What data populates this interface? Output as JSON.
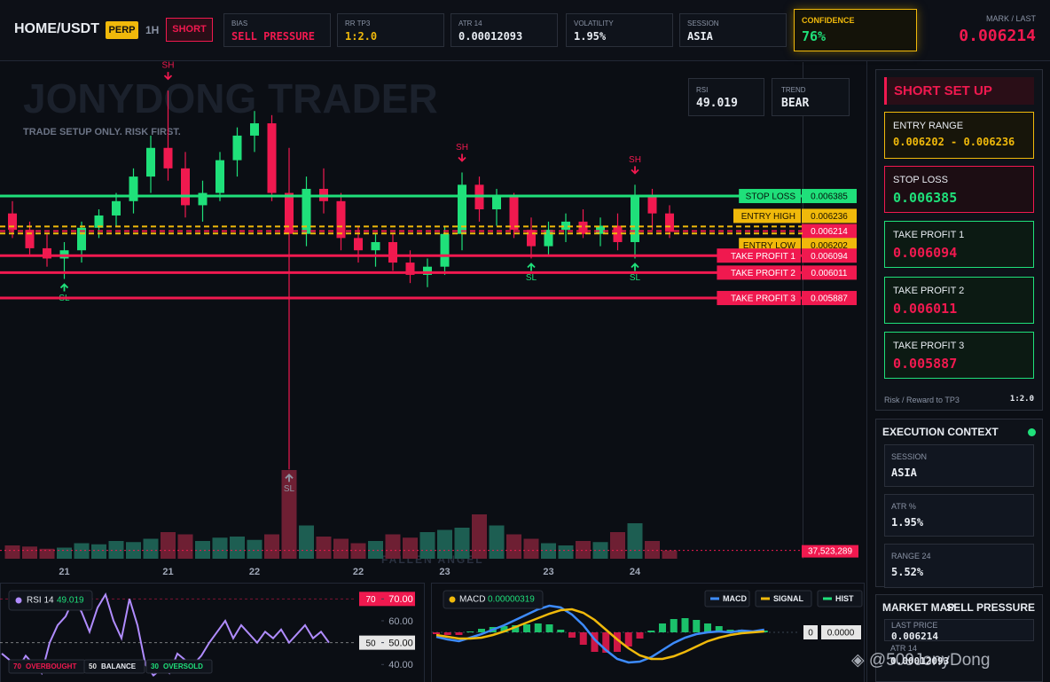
{
  "header": {
    "symbol": "HOME/USDT",
    "badge": "PERP",
    "timeframe": "1H",
    "side": "SHORT",
    "stats": [
      {
        "label": "BIAS",
        "value": "SELL PRESSURE"
      },
      {
        "label": "RR TP3",
        "value": "1:2.0"
      },
      {
        "label": "ATR 14",
        "value": "0.00012093"
      },
      {
        "label": "VOLATILITY",
        "value": "1.95%"
      },
      {
        "label": "SESSION",
        "value": "ASIA"
      }
    ],
    "confidence": {
      "label": "CONFIDENCE",
      "value": "76%"
    },
    "mark": {
      "label": "MARK / LAST",
      "value": "0.006214"
    }
  },
  "overlay": {
    "watermark": "JONYDONG TRADER",
    "tagline": "TRADE SETUP ONLY. RISK FIRST.",
    "rsi_label": "RSI",
    "rsi": "49.019",
    "trend_label": "TREND",
    "trend": "BEAR",
    "footer": "FALLEN ANGEL"
  },
  "setup_panel": {
    "title": "SHORT SET UP",
    "cards": [
      {
        "label": "ENTRY RANGE",
        "value": "0.006202 - 0.006236"
      },
      {
        "label": "STOP LOSS",
        "value": "0.006385"
      },
      {
        "label": "TAKE PROFIT 1",
        "value": "0.006094"
      },
      {
        "label": "TAKE PROFIT 2",
        "value": "0.006011"
      },
      {
        "label": "TAKE PROFIT 3",
        "value": "0.005887"
      }
    ],
    "rr_label": "Risk / Reward to TP3",
    "rr": "1:2.0"
  },
  "execution_context": {
    "title": "EXECUTION CONTEXT",
    "cards": [
      {
        "label": "SESSION",
        "value": "ASIA"
      },
      {
        "label": "ATR %",
        "value": "1.95%"
      },
      {
        "label": "RANGE 24",
        "value": "5.52%"
      }
    ]
  },
  "market_map": {
    "title": "MARKET MAP",
    "bias": "SELL PRESSURE",
    "last_label": "LAST PRICE",
    "last": "0.006214",
    "atr_label": "ATR 14",
    "atr": "0.00012093"
  },
  "credit": "@509JonyDong",
  "chart_data": [
    {
      "type": "candlestick",
      "up_color": "#1fe07a",
      "down_color": "#f0194f",
      "volume_up_color": "#1d5e52",
      "volume_down_color": "#6e1f33",
      "ylim": [
        0.004614,
        0.007039
      ],
      "categories": [
        null,
        null,
        null,
        "21",
        null,
        null,
        null,
        null,
        null,
        "21",
        null,
        null,
        null,
        null,
        "22",
        null,
        null,
        null,
        null,
        null,
        "22",
        null,
        null,
        null,
        null,
        "23",
        null,
        null,
        null,
        null,
        null,
        "23",
        null,
        null,
        null,
        null,
        "24",
        null,
        null
      ],
      "open": [
        0.0063,
        0.00622,
        0.00613,
        0.00608,
        0.00612,
        0.00623,
        0.00629,
        0.00636,
        0.00648,
        0.00662,
        0.00652,
        0.00634,
        0.0064,
        0.00656,
        0.00668,
        0.00674,
        0.0064,
        0.0062,
        0.00642,
        0.00636,
        0.00618,
        0.00612,
        0.00616,
        0.00606,
        0.006,
        0.00604,
        0.0062,
        0.00644,
        0.00632,
        0.00638,
        0.00622,
        0.00614,
        0.00622,
        0.00626,
        0.0062,
        0.00624,
        0.00616,
        0.00638,
        0.0063
      ],
      "high": [
        0.00636,
        0.00626,
        0.0062,
        0.00616,
        0.00626,
        0.00632,
        0.0064,
        0.00652,
        0.00668,
        0.0069,
        0.0066,
        0.00646,
        0.0066,
        0.00672,
        0.0068,
        0.00678,
        0.00662,
        0.00648,
        0.00652,
        0.0064,
        0.00624,
        0.0062,
        0.0062,
        0.00612,
        0.00608,
        0.00624,
        0.0065,
        0.00648,
        0.00642,
        0.0064,
        0.00628,
        0.00626,
        0.0063,
        0.00632,
        0.00628,
        0.0063,
        0.00644,
        0.00642,
        0.00634
      ],
      "low": [
        0.00618,
        0.0061,
        0.00604,
        0.00598,
        0.00606,
        0.00618,
        0.00624,
        0.0063,
        0.0064,
        0.00646,
        0.00628,
        0.00626,
        0.00636,
        0.00648,
        0.0066,
        0.00636,
        0.00505,
        0.00614,
        0.0063,
        0.00612,
        0.00606,
        0.00604,
        0.00602,
        0.00596,
        0.00594,
        0.006,
        0.00612,
        0.00626,
        0.00624,
        0.00618,
        0.00608,
        0.0061,
        0.00616,
        0.00618,
        0.00614,
        0.00612,
        0.00608,
        0.00622,
        0.00618
      ],
      "close": [
        0.00622,
        0.00613,
        0.00608,
        0.00612,
        0.00623,
        0.00629,
        0.00636,
        0.00648,
        0.00662,
        0.00652,
        0.00634,
        0.0064,
        0.00656,
        0.00668,
        0.00674,
        0.0064,
        0.0062,
        0.00642,
        0.00636,
        0.00618,
        0.00612,
        0.00616,
        0.00606,
        0.006,
        0.00604,
        0.0062,
        0.00644,
        0.00632,
        0.00638,
        0.00622,
        0.00614,
        0.00622,
        0.00626,
        0.0062,
        0.00624,
        0.00616,
        0.00638,
        0.0063,
        0.00621
      ],
      "volume": [
        60000000,
        55000000,
        45000000,
        50000000,
        70000000,
        65000000,
        80000000,
        75000000,
        90000000,
        120000000,
        110000000,
        80000000,
        95000000,
        100000000,
        85000000,
        110000000,
        400000000,
        150000000,
        100000000,
        90000000,
        70000000,
        80000000,
        110000000,
        95000000,
        120000000,
        130000000,
        140000000,
        200000000,
        150000000,
        110000000,
        90000000,
        70000000,
        60000000,
        80000000,
        75000000,
        120000000,
        160000000,
        80000000,
        37523289
      ],
      "volume_ylim": [
        0,
        400000000
      ],
      "volume_marker": {
        "value": 37523289,
        "label": "37,523,289"
      },
      "swing_high": [
        null,
        null,
        null,
        null,
        null,
        null,
        null,
        null,
        null,
        "SH",
        null,
        null,
        null,
        null,
        null,
        null,
        null,
        null,
        null,
        null,
        null,
        null,
        null,
        null,
        null,
        null,
        "SH",
        null,
        null,
        null,
        null,
        null,
        null,
        null,
        null,
        null,
        "SH",
        null,
        null
      ],
      "swing_low": [
        null,
        null,
        null,
        "SL",
        null,
        null,
        null,
        null,
        null,
        null,
        null,
        null,
        null,
        null,
        null,
        null,
        "SL",
        null,
        null,
        null,
        null,
        null,
        null,
        null,
        null,
        null,
        null,
        null,
        null,
        null,
        "SL",
        null,
        null,
        null,
        null,
        null,
        "SL",
        null,
        null
      ],
      "levels": [
        {
          "label": "STOP LOSS",
          "value": 0.006385,
          "color": "#1fe07a",
          "text_color": "#05140c",
          "dash": false
        },
        {
          "label": "ENTRY HIGH",
          "value": 0.006236,
          "color": "#f0b90b",
          "text_color": "#1a1200",
          "dash": true
        },
        {
          "value": 0.006214,
          "color": "#f0194f",
          "text_color": "#ffffff",
          "dash": true
        },
        {
          "label": "ENTRY LOW",
          "value": 0.006202,
          "color": "#f0b90b",
          "text_color": "#1a1200",
          "dash": true
        },
        {
          "label": "TAKE PROFIT 1",
          "value": 0.006094,
          "color": "#f0194f",
          "text_color": "#ffffff",
          "dash": false
        },
        {
          "label": "TAKE PROFIT 2",
          "value": 0.006011,
          "color": "#f0194f",
          "text_color": "#ffffff",
          "dash": false
        },
        {
          "label": "TAKE PROFIT 3",
          "value": 0.005887,
          "color": "#f0194f",
          "text_color": "#ffffff",
          "dash": false
        }
      ]
    },
    {
      "type": "line",
      "name": "RSI 14",
      "current": 49.019,
      "color": "#b08cff",
      "ylim": [
        32,
        75
      ],
      "yticks": [
        {
          "value": 70,
          "label": "70.00"
        },
        {
          "value": 60,
          "label": "60.00"
        },
        {
          "value": 50,
          "label": "50.00"
        },
        {
          "value": 40,
          "label": "40.00"
        }
      ],
      "levels": [
        {
          "value": 70,
          "label": "OVERBOUGHT",
          "color": "#f0194f",
          "text_color": "#ffffff"
        },
        {
          "value": 50,
          "label": "BALANCE",
          "color": "#e6e6e6",
          "text_color": "#111111"
        },
        {
          "value": 30,
          "label": "OVERSOLD",
          "color": "#1fe07a",
          "text_color": "#111111"
        }
      ],
      "values": [
        45,
        42,
        38,
        44,
        40,
        36,
        50,
        58,
        62,
        70,
        64,
        55,
        66,
        72,
        60,
        52,
        70,
        58,
        40,
        35,
        38,
        36,
        45,
        42,
        40,
        44,
        50,
        55,
        60,
        52,
        58,
        54,
        50,
        55,
        52,
        56,
        50,
        54,
        58,
        52,
        55,
        50
      ]
    },
    {
      "type": "macd",
      "current": 3.19e-06,
      "ylim": [
        -5e-05,
        5e-05
      ],
      "yticks": [
        {
          "value": 0,
          "label": "0.0000"
        }
      ],
      "header_color": "#f0b90b",
      "series": [
        {
          "name": "MACD",
          "type": "line",
          "color": "#3d8bfd",
          "values": [
            -5e-06,
            -8e-06,
            -1e-05,
            -6e-06,
            -2e-06,
            3e-06,
            8e-06,
            1.4e-05,
            2e-05,
            2.6e-05,
            3e-05,
            2.8e-05,
            2e-05,
            8e-06,
            -8e-06,
            -2e-05,
            -3e-05,
            -3.4e-05,
            -3.3e-05,
            -2.8e-05,
            -2e-05,
            -1.2e-05,
            -6e-06,
            -2e-06,
            0,
            1e-06,
            0,
            2e-06,
            1e-06,
            3e-06
          ]
        },
        {
          "name": "SIGNAL",
          "type": "line",
          "color": "#f0b90b",
          "values": [
            -3e-06,
            -5e-06,
            -7e-06,
            -7e-06,
            -6e-06,
            -3e-06,
            1e-06,
            6e-06,
            1.1e-05,
            1.6e-05,
            2.1e-05,
            2.5e-05,
            2.6e-05,
            2.2e-05,
            1.4e-05,
            3e-06,
            -8e-06,
            -1.8e-05,
            -2.6e-05,
            -3e-05,
            -3e-05,
            -2.7e-05,
            -2.2e-05,
            -1.6e-05,
            -1e-05,
            -6e-06,
            -3e-06,
            -1e-06,
            0,
            1e-06
          ]
        },
        {
          "name": "HIST",
          "type": "bar",
          "color": "#1fe07a",
          "negative_color": "#f0194f",
          "values": [
            -2e-06,
            -3e-06,
            -3e-06,
            1e-06,
            4e-06,
            6e-06,
            7e-06,
            8e-06,
            9e-06,
            1e-05,
            9e-06,
            3e-06,
            -6e-06,
            -1.4e-05,
            -2.2e-05,
            -2.3e-05,
            -2.2e-05,
            -1.6e-05,
            -7e-06,
            2e-06,
            1e-05,
            1.5e-05,
            1.6e-05,
            1.4e-05,
            1e-05,
            7e-06,
            3e-06,
            3e-06,
            1e-06,
            2e-06
          ]
        }
      ]
    }
  ]
}
